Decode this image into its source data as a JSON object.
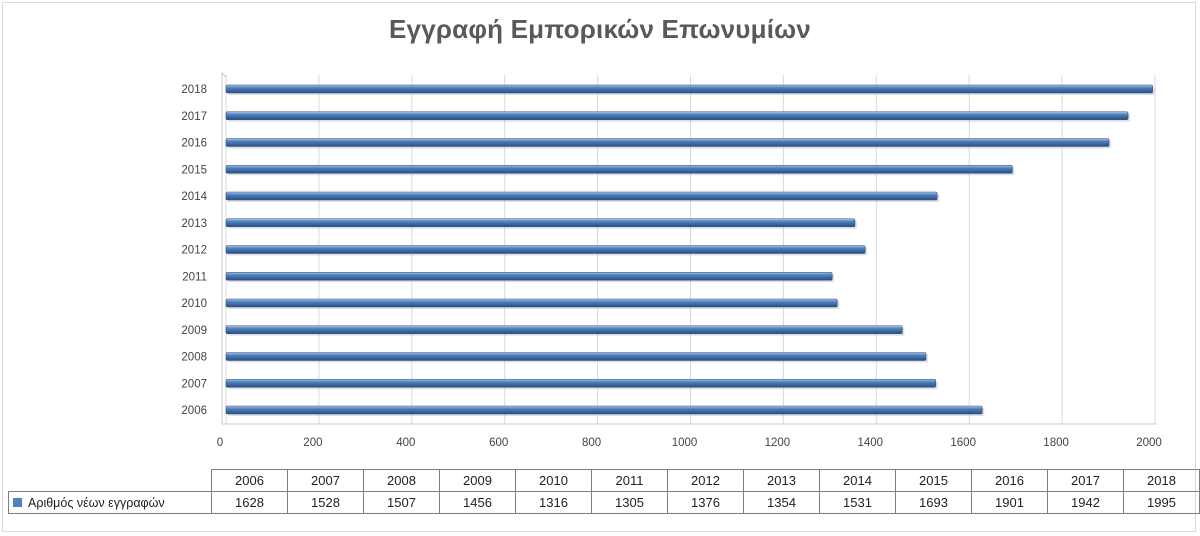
{
  "chart_data": {
    "type": "bar",
    "orientation": "horizontal",
    "title": "Εγγραφή Εμπορικών Επωνυμίων",
    "categories": [
      "2006",
      "2007",
      "2008",
      "2009",
      "2010",
      "2011",
      "2012",
      "2013",
      "2014",
      "2015",
      "2016",
      "2017",
      "2018"
    ],
    "series": [
      {
        "name": "Αριθμός νέων εγγραφών",
        "color": "#4f81bd",
        "values": [
          1628,
          1528,
          1507,
          1456,
          1316,
          1305,
          1376,
          1354,
          1531,
          1693,
          1901,
          1942,
          1995
        ]
      }
    ],
    "xlim": [
      0,
      2000
    ],
    "xticks": [
      0,
      200,
      400,
      600,
      800,
      1000,
      1200,
      1400,
      1600,
      1800,
      2000
    ],
    "grid": true,
    "legend": "data-table",
    "data_table": true
  }
}
